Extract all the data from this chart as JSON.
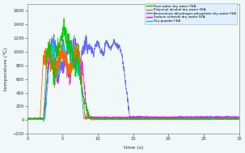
{
  "title": "",
  "xlabel": "time (s)",
  "ylabel": "temperature (℃)",
  "xlim": [
    0,
    30
  ],
  "ylim": [
    -200,
    1700
  ],
  "yticks": [
    -200,
    0,
    200,
    400,
    600,
    800,
    1000,
    1200,
    1400,
    1600
  ],
  "xticks": [
    0,
    5,
    10,
    15,
    20,
    25,
    30
  ],
  "legend_labels": [
    "Pure water dry water FEA",
    "Polyvinyl alcohol dry water FEA",
    "Ammonium dihydrogen phosphate dry water FEA",
    "Sodium chloride dry water FEA",
    "Dry powder FEA"
  ],
  "legend_colors": [
    "#00cc00",
    "#ff6600",
    "#6666ff",
    "#ff00ff",
    "#00cccc"
  ],
  "bg_color": "#f0f8f8",
  "line_colors": {
    "pure_water": "#00cc00",
    "polyvinyl": "#ff6600",
    "ammonium": "#6666ff",
    "sodium": "#ff00ff",
    "dry_powder": "#00cccc"
  },
  "figsize": [
    3.03,
    1.89
  ],
  "dpi": 100
}
